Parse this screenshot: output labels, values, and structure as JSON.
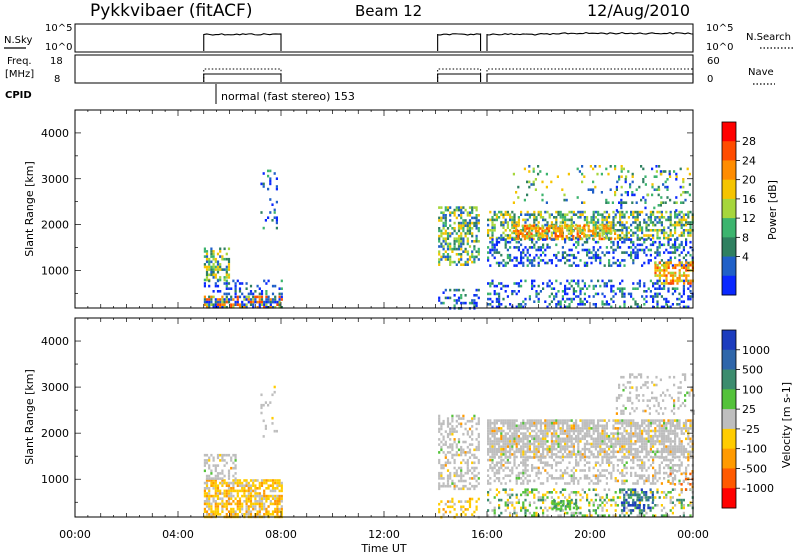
{
  "header": {
    "radar": "Pykkvibaer (fitACF)",
    "beam": "Beam 12",
    "date": "12/Aug/2010"
  },
  "chart_data": [
    {
      "panel": "noise",
      "type": "line",
      "left_label": "N.Sky",
      "left_ticks": [
        "10^5",
        "10^0"
      ],
      "right_label": "N.Search",
      "right_ticks": [
        "10^5",
        "10^0"
      ],
      "segments": [
        {
          "start": "05:00",
          "end": "08:00"
        },
        {
          "start": "14:05",
          "end": "15:45"
        },
        {
          "start": "16:00",
          "end": "24:00"
        }
      ]
    },
    {
      "panel": "frequency",
      "type": "line",
      "left_label_lines": [
        "Freq.",
        "[MHz]"
      ],
      "left_ticks": [
        "18",
        "8"
      ],
      "right_label": "Nave",
      "right_ticks": [
        "60",
        "0"
      ],
      "cpid_label": "CPID",
      "cpid_text": "normal (fast stereo) 153"
    },
    {
      "panel": "power",
      "type": "heatmap",
      "ylabel": "Slant Range [km]",
      "ylim": [
        180,
        4500
      ],
      "yticks": [
        "1000",
        "2000",
        "3000",
        "4000"
      ],
      "colorbar_label": "Power [dB]",
      "colorbar_ticks": [
        "28",
        "24",
        "20",
        "16",
        "12",
        "8",
        "4"
      ],
      "colorbar_colors": [
        "#ff0000",
        "#ff4c00",
        "#ff8c00",
        "#f5c400",
        "#a6d63c",
        "#3cb46e",
        "#2f8060",
        "#2060c8",
        "#0a28ff"
      ]
    },
    {
      "panel": "velocity",
      "type": "heatmap",
      "ylabel": "Slant Range [km]",
      "ylim": [
        180,
        4500
      ],
      "yticks": [
        "1000",
        "2000",
        "3000",
        "4000"
      ],
      "colorbar_label": "Velocity [m s-1]",
      "colorbar_ticks": [
        "1000",
        "500",
        "100",
        "25",
        "-25",
        "-100",
        "-500",
        "-1000"
      ],
      "colorbar_colors": [
        "#1c3cbe",
        "#2f66aa",
        "#3c8c6e",
        "#54c23a",
        "#bebebe",
        "#ffcc00",
        "#ff9a00",
        "#ff5a00",
        "#ff0000"
      ]
    }
  ],
  "xaxis": {
    "label": "Time UT",
    "ticks": [
      "00:00",
      "04:00",
      "08:00",
      "12:00",
      "16:00",
      "20:00",
      "00:00"
    ]
  }
}
